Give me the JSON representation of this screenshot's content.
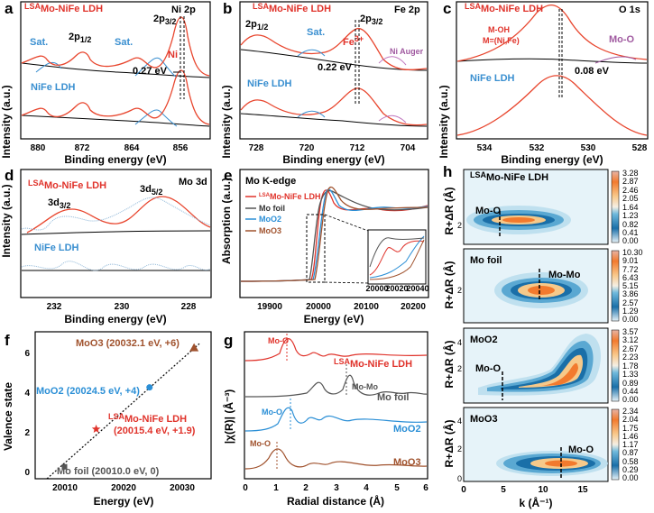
{
  "panels": {
    "a": {
      "letter": "a",
      "title_sup": "LSA",
      "title": "Mo-NiFe LDH",
      "element": "Ni 2p",
      "sat1": "Sat.",
      "p12_main": "2p",
      "p12_sub": "1/2",
      "sat2": "Sat.",
      "p32_main": "2p",
      "p32_sub": "3/2",
      "ni_ion": "Ni",
      "ref": "NiFe LDH",
      "shift": "0.27 eV",
      "xlabel": "Binding energy (eV)",
      "ylabel": "Intensity (a.u.)",
      "ticks": [
        "880",
        "872",
        "864",
        "856"
      ]
    },
    "b": {
      "letter": "b",
      "title_sup": "LSA",
      "title": "Mo-NiFe LDH",
      "element": "Fe 2p",
      "p12_main": "2p",
      "p12_sub": "1/2",
      "sat": "Sat.",
      "p32_main": "2p",
      "p32_sub": "3/2",
      "fe_ion": "Fe",
      "fe_sup": "3+",
      "auger": "Ni Auger",
      "ref": "NiFe LDH",
      "shift": "0.22 eV",
      "xlabel": "Binding energy (eV)",
      "ylabel": "Intensity (a.u.)",
      "ticks": [
        "728",
        "720",
        "712",
        "704"
      ]
    },
    "c": {
      "letter": "c",
      "title_sup": "LSA",
      "title": "Mo-NiFe LDH",
      "element": "O 1s",
      "moh": "M-OH",
      "moh2": "M=(Ni,Fe)",
      "moo": "Mo-O",
      "ref": "NiFe LDH",
      "shift": "0.08 eV",
      "xlabel": "Binding energy (eV)",
      "ylabel": "Intensity (a.u.)",
      "ticks": [
        "534",
        "532",
        "530",
        "528"
      ]
    },
    "d": {
      "letter": "d",
      "title_sup": "LSA",
      "title": "Mo-NiFe LDH",
      "element": "Mo 3d",
      "p32_main": "3d",
      "p32_sub": "3/2",
      "p52_main": "3d",
      "p52_sub": "5/2",
      "ref": "NiFe LDH",
      "xlabel": "Binding energy (eV)",
      "ylabel": "Intensity (a.u.)",
      "ticks": [
        "232",
        "230",
        "228"
      ]
    },
    "e": {
      "letter": "e",
      "title": "Mo K-edge",
      "legend": [
        {
          "sup": "LSA",
          "label": "Mo-NiFe LDH",
          "color": "#e0332b"
        },
        {
          "sup": "",
          "label": "Mo foil",
          "color": "#333333"
        },
        {
          "sup": "",
          "label": "MoO2",
          "color": "#2b8fd6"
        },
        {
          "sup": "",
          "label": "MoO3",
          "color": "#a0522d"
        }
      ],
      "inset_ticks": [
        "20000",
        "20020",
        "20040"
      ],
      "xlabel": "Energy (eV)",
      "ylabel": "Absorption (a.u.)",
      "ticks": [
        "19900",
        "20000",
        "20100",
        "20200"
      ]
    },
    "f": {
      "letter": "f",
      "xlabel": "Energy (eV)",
      "ylabel": "Valence state",
      "xticks": [
        "20010",
        "20020",
        "20030"
      ],
      "yticks": [
        "0",
        "2",
        "4",
        "6"
      ]
    },
    "g": {
      "letter": "g",
      "labels": {
        "lsa_peak": "Mo-O",
        "lsa_sup": "LSA",
        "lsa_name": "Mo-NiFe LDH",
        "foil_peak": "Mo-Mo",
        "foil_name": "Mo foil",
        "moo2_peak": "Mo-O",
        "moo2_name": "MoO2",
        "moo3_peak": "Mo-O",
        "moo3_name": "MoO3"
      },
      "xlabel": "Radial distance (Å)",
      "ylabel": "|χ(R)| (Å⁻³)",
      "ticks": [
        "0",
        "1",
        "2",
        "3",
        "4",
        "5",
        "6"
      ]
    },
    "h": {
      "letter": "h",
      "xlabel": "k (Å⁻¹)",
      "ylabel": "R+ΔR (Å)",
      "xticks": [
        "0",
        "5",
        "10",
        "15"
      ],
      "yticks": [
        "0",
        "2",
        "4"
      ],
      "maps": [
        {
          "sup": "LSA",
          "title": "Mo-NiFe LDH",
          "bond": "Mo-O",
          "scale": [
            "3.28",
            "2.87",
            "2.46",
            "2.05",
            "1.64",
            "1.23",
            "0.82",
            "0.41",
            "0.00"
          ]
        },
        {
          "sup": "",
          "title": "Mo foil",
          "bond": "Mo-Mo",
          "scale": [
            "10.30",
            "9.01",
            "7.72",
            "6.43",
            "5.15",
            "3.86",
            "2.57",
            "1.29",
            "0.00"
          ]
        },
        {
          "sup": "",
          "title": "MoO2",
          "bond": "Mo-O",
          "scale": [
            "3.57",
            "3.12",
            "2.67",
            "2.23",
            "1.78",
            "1.33",
            "0.89",
            "0.44",
            "0.00"
          ]
        },
        {
          "sup": "",
          "title": "MoO3",
          "bond": "Mo-O",
          "scale": [
            "2.34",
            "2.04",
            "1.75",
            "1.46",
            "1.17",
            "0.87",
            "0.58",
            "0.29",
            "0.00"
          ]
        }
      ]
    }
  },
  "chart_data": [
    {
      "panel": "f",
      "type": "scatter",
      "xlabel": "Energy (eV)",
      "ylabel": "Valence state",
      "xlim": [
        20005,
        20035
      ],
      "ylim": [
        -0.6,
        6.8
      ],
      "points": [
        {
          "name": "Mo foil",
          "label": "Mo foil (20010.0 eV, 0)",
          "x": 20010.0,
          "y": 0,
          "color": "#555555",
          "marker": "square"
        },
        {
          "name": "LSA Mo-NiFe LDH",
          "label_sup": "LSA",
          "label": "Mo-NiFe LDH",
          "label2": "(20015.4 eV, +1.9)",
          "x": 20015.4,
          "y": 1.9,
          "color": "#e0332b",
          "marker": "star"
        },
        {
          "name": "MoO2",
          "label": "MoO2 (20024.5 eV, +4)",
          "x": 20024.5,
          "y": 4,
          "color": "#2b8fd6",
          "marker": "circle"
        },
        {
          "name": "MoO3",
          "label": "MoO3 (20032.1 eV, +6)",
          "x": 20032.1,
          "y": 6,
          "color": "#a0522d",
          "marker": "triangle"
        }
      ],
      "fit_line": {
        "x": [
          20007,
          20033
        ],
        "y": [
          -0.6,
          6.2
        ]
      }
    }
  ]
}
